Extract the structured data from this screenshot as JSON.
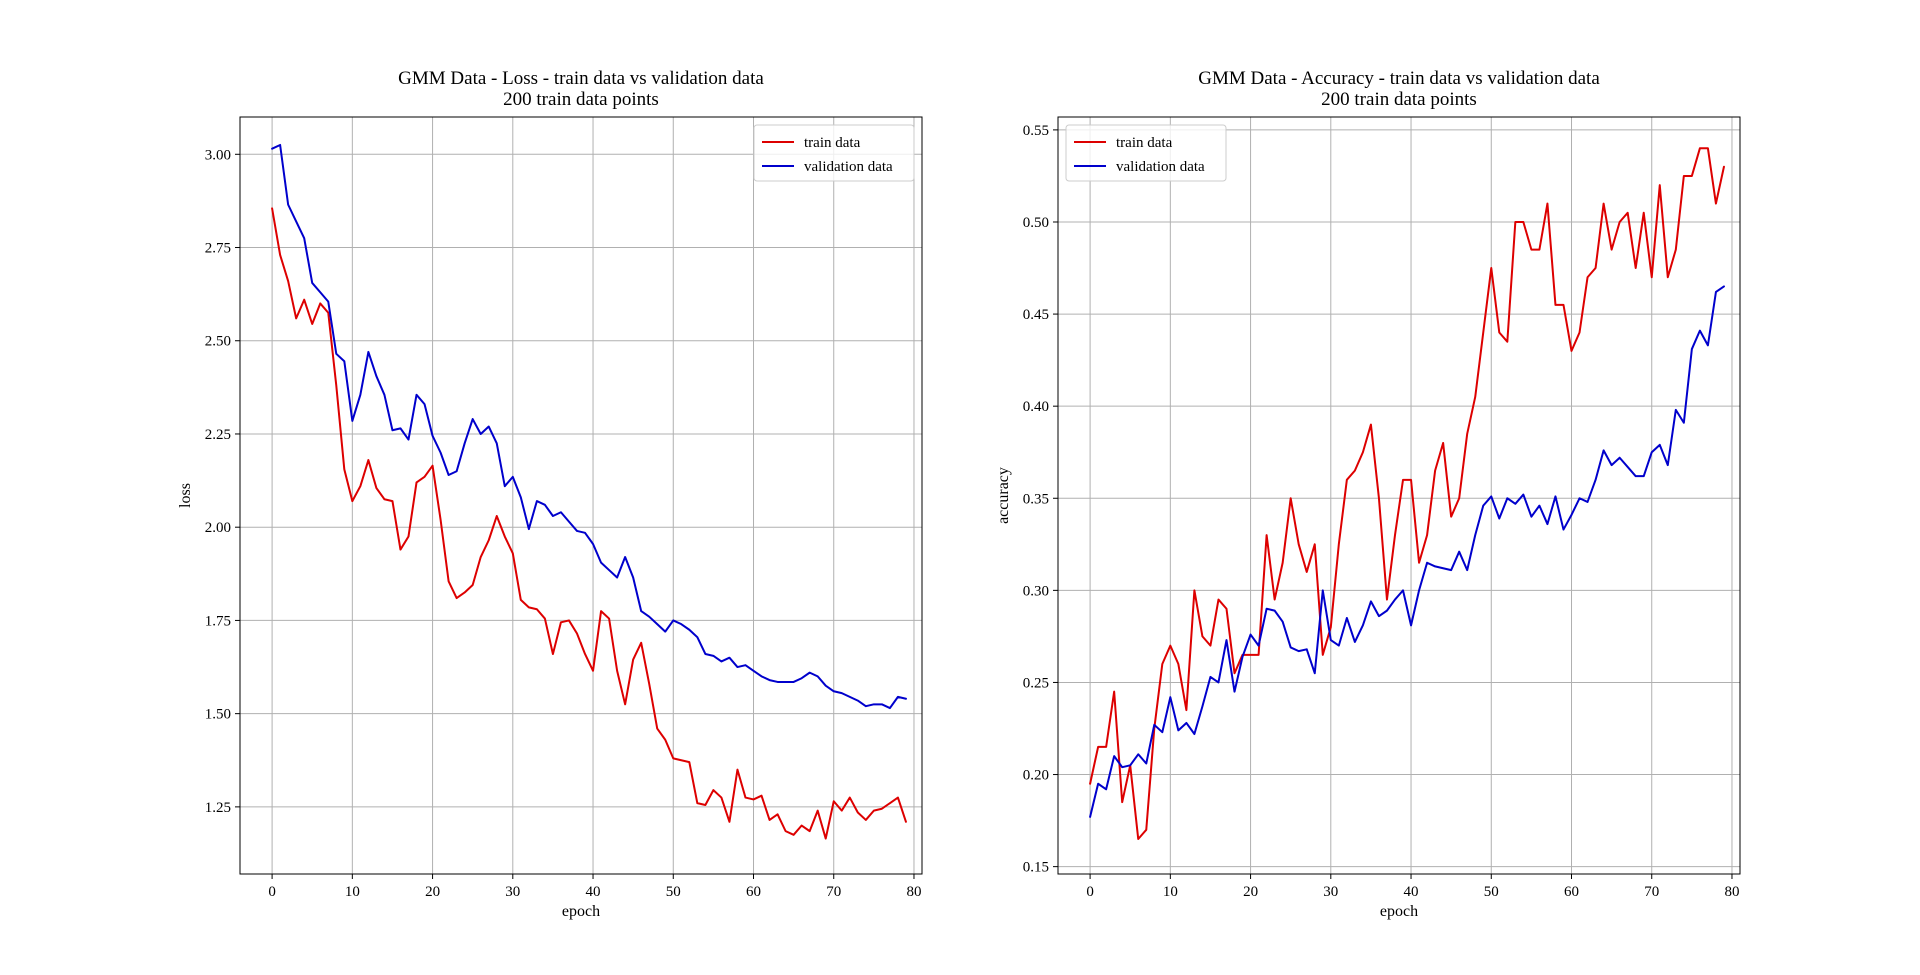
{
  "chart_data": [
    {
      "type": "line",
      "title": "GMM Data - Loss - train data vs validation data",
      "subtitle": "200 train data points",
      "xlabel": "epoch",
      "ylabel": "loss",
      "xlim": [
        -4,
        81
      ],
      "ylim": [
        1.07,
        3.1
      ],
      "xticks": [
        0,
        10,
        20,
        30,
        40,
        50,
        60,
        70,
        80
      ],
      "yticks": [
        1.25,
        1.5,
        1.75,
        2.0,
        2.25,
        2.5,
        2.75,
        3.0
      ],
      "ytick_labels": [
        "1.25",
        "1.50",
        "1.75",
        "2.00",
        "2.25",
        "2.50",
        "2.75",
        "3.00"
      ],
      "grid": true,
      "legend_position": "top-right",
      "series": [
        {
          "name": "train data",
          "color": "#dd0000",
          "values": [
            2.855,
            2.73,
            2.66,
            2.56,
            2.61,
            2.545,
            2.6,
            2.575,
            2.38,
            2.155,
            2.07,
            2.11,
            2.18,
            2.105,
            2.075,
            2.07,
            1.94,
            1.975,
            2.12,
            2.135,
            2.165,
            2.02,
            1.855,
            1.81,
            1.825,
            1.845,
            1.92,
            1.965,
            2.03,
            1.975,
            1.93,
            1.805,
            1.785,
            1.78,
            1.755,
            1.66,
            1.745,
            1.75,
            1.715,
            1.66,
            1.615,
            1.775,
            1.755,
            1.615,
            1.525,
            1.645,
            1.69,
            1.58,
            1.46,
            1.43,
            1.38,
            1.375,
            1.37,
            1.26,
            1.255,
            1.295,
            1.275,
            1.21,
            1.35,
            1.275,
            1.27,
            1.28,
            1.215,
            1.23,
            1.185,
            1.175,
            1.2,
            1.185,
            1.24,
            1.165,
            1.265,
            1.24,
            1.275,
            1.235,
            1.215,
            1.24,
            1.245,
            1.26,
            1.275,
            1.21
          ]
        },
        {
          "name": "validation data",
          "color": "#0000cc",
          "values": [
            3.015,
            3.025,
            2.865,
            2.82,
            2.775,
            2.655,
            2.63,
            2.605,
            2.465,
            2.445,
            2.285,
            2.355,
            2.47,
            2.405,
            2.355,
            2.26,
            2.265,
            2.235,
            2.355,
            2.33,
            2.245,
            2.2,
            2.14,
            2.15,
            2.225,
            2.29,
            2.25,
            2.27,
            2.225,
            2.11,
            2.135,
            2.08,
            1.995,
            2.07,
            2.06,
            2.03,
            2.04,
            2.015,
            1.99,
            1.985,
            1.955,
            1.905,
            1.885,
            1.865,
            1.92,
            1.865,
            1.775,
            1.76,
            1.74,
            1.72,
            1.75,
            1.74,
            1.725,
            1.705,
            1.66,
            1.655,
            1.64,
            1.65,
            1.625,
            1.63,
            1.615,
            1.6,
            1.59,
            1.585,
            1.585,
            1.585,
            1.595,
            1.61,
            1.6,
            1.575,
            1.56,
            1.555,
            1.545,
            1.535,
            1.52,
            1.525,
            1.525,
            1.515,
            1.545,
            1.54
          ]
        }
      ]
    },
    {
      "type": "line",
      "title": "GMM Data - Accuracy - train data vs validation data",
      "subtitle": "200 train data points",
      "xlabel": "epoch",
      "ylabel": "accuracy",
      "xlim": [
        -4,
        81
      ],
      "ylim": [
        0.146,
        0.557
      ],
      "xticks": [
        0,
        10,
        20,
        30,
        40,
        50,
        60,
        70,
        80
      ],
      "yticks": [
        0.15,
        0.2,
        0.25,
        0.3,
        0.35,
        0.4,
        0.45,
        0.5,
        0.55
      ],
      "ytick_labels": [
        "0.15",
        "0.20",
        "0.25",
        "0.30",
        "0.35",
        "0.40",
        "0.45",
        "0.50",
        "0.55"
      ],
      "grid": true,
      "legend_position": "top-left",
      "series": [
        {
          "name": "train data",
          "color": "#dd0000",
          "values": [
            0.195,
            0.215,
            0.215,
            0.245,
            0.185,
            0.205,
            0.165,
            0.17,
            0.225,
            0.26,
            0.27,
            0.26,
            0.235,
            0.3,
            0.275,
            0.27,
            0.295,
            0.29,
            0.255,
            0.265,
            0.265,
            0.265,
            0.33,
            0.295,
            0.315,
            0.35,
            0.325,
            0.31,
            0.325,
            0.265,
            0.28,
            0.325,
            0.36,
            0.365,
            0.375,
            0.39,
            0.35,
            0.295,
            0.33,
            0.36,
            0.36,
            0.315,
            0.33,
            0.365,
            0.38,
            0.34,
            0.35,
            0.385,
            0.405,
            0.44,
            0.475,
            0.44,
            0.435,
            0.5,
            0.5,
            0.485,
            0.485,
            0.51,
            0.455,
            0.455,
            0.43,
            0.44,
            0.47,
            0.475,
            0.51,
            0.485,
            0.5,
            0.505,
            0.475,
            0.505,
            0.47,
            0.52,
            0.47,
            0.485,
            0.525,
            0.525,
            0.54,
            0.54,
            0.51,
            0.53
          ]
        },
        {
          "name": "validation data",
          "color": "#0000cc",
          "values": [
            0.177,
            0.195,
            0.192,
            0.21,
            0.204,
            0.205,
            0.211,
            0.206,
            0.227,
            0.223,
            0.242,
            0.224,
            0.228,
            0.222,
            0.237,
            0.253,
            0.25,
            0.273,
            0.245,
            0.264,
            0.276,
            0.27,
            0.29,
            0.289,
            0.283,
            0.269,
            0.267,
            0.268,
            0.255,
            0.3,
            0.273,
            0.27,
            0.285,
            0.272,
            0.281,
            0.294,
            0.286,
            0.289,
            0.295,
            0.3,
            0.281,
            0.3,
            0.315,
            0.313,
            0.312,
            0.311,
            0.321,
            0.311,
            0.33,
            0.346,
            0.351,
            0.339,
            0.35,
            0.347,
            0.352,
            0.34,
            0.346,
            0.336,
            0.351,
            0.333,
            0.341,
            0.35,
            0.348,
            0.36,
            0.376,
            0.368,
            0.372,
            0.367,
            0.362,
            0.362,
            0.375,
            0.379,
            0.368,
            0.398,
            0.391,
            0.431,
            0.441,
            0.433,
            0.462,
            0.465
          ]
        }
      ]
    }
  ]
}
